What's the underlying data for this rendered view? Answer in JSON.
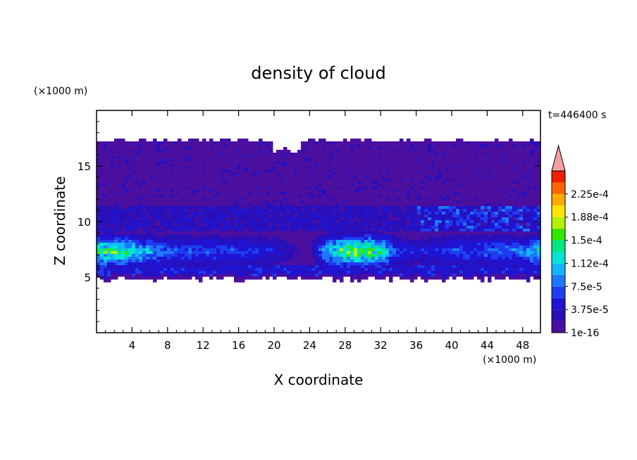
{
  "chart_data": {
    "type": "heatmap",
    "title": "density of cloud",
    "xlabel": "X coordinate",
    "ylabel": "Z coordinate",
    "x_unit": "(×1000 m)",
    "y_unit": "(×1000 m)",
    "time_label": "t=446400 s",
    "xlim": [
      0,
      50
    ],
    "ylim": [
      0,
      20
    ],
    "x_ticks": [
      4,
      8,
      12,
      16,
      20,
      24,
      28,
      32,
      36,
      40,
      44,
      48
    ],
    "y_ticks": [
      5,
      10,
      15
    ],
    "colorbar": {
      "labels": [
        "1e-16",
        "3.75e-5",
        "7.5e-5",
        "1.12e-4",
        "1.5e-4",
        "1.88e-4",
        "2.25e-4"
      ],
      "levels": [
        1e-16,
        1.875e-05,
        3.75e-05,
        5.625e-05,
        7.5e-05,
        9.375e-05,
        0.0001125,
        0.00013125,
        0.00015,
        0.00016875,
        0.0001875,
        0.00020625,
        0.000225,
        0.00024375
      ],
      "colors": [
        "#4b0fa0",
        "#2a0fb8",
        "#1e14d2",
        "#1e3cf0",
        "#1e78ff",
        "#14b4ff",
        "#00e6d2",
        "#00e682",
        "#32e600",
        "#b4f000",
        "#ffe600",
        "#ffaa00",
        "#ff6400",
        "#f01e00"
      ],
      "extend_color": "#f4a0a0"
    },
    "field": {
      "cloud_base_z": 5,
      "cloud_top_z": 17.3,
      "notes_x": [
        0,
        2,
        4,
        8,
        12,
        16,
        20,
        24,
        26,
        28,
        30,
        32,
        34,
        36,
        40,
        44,
        48,
        50
      ],
      "max_density_low_layer": [
        0.00015,
        0.00016,
        0.00013,
        8e-05,
        7e-05,
        7e-05,
        5e-05,
        1e-05,
        0.00012,
        0.00017,
        0.00018,
        0.00015,
        6e-05,
        5e-05,
        7e-05,
        8e-05,
        9e-05,
        0.00013
      ]
    }
  }
}
